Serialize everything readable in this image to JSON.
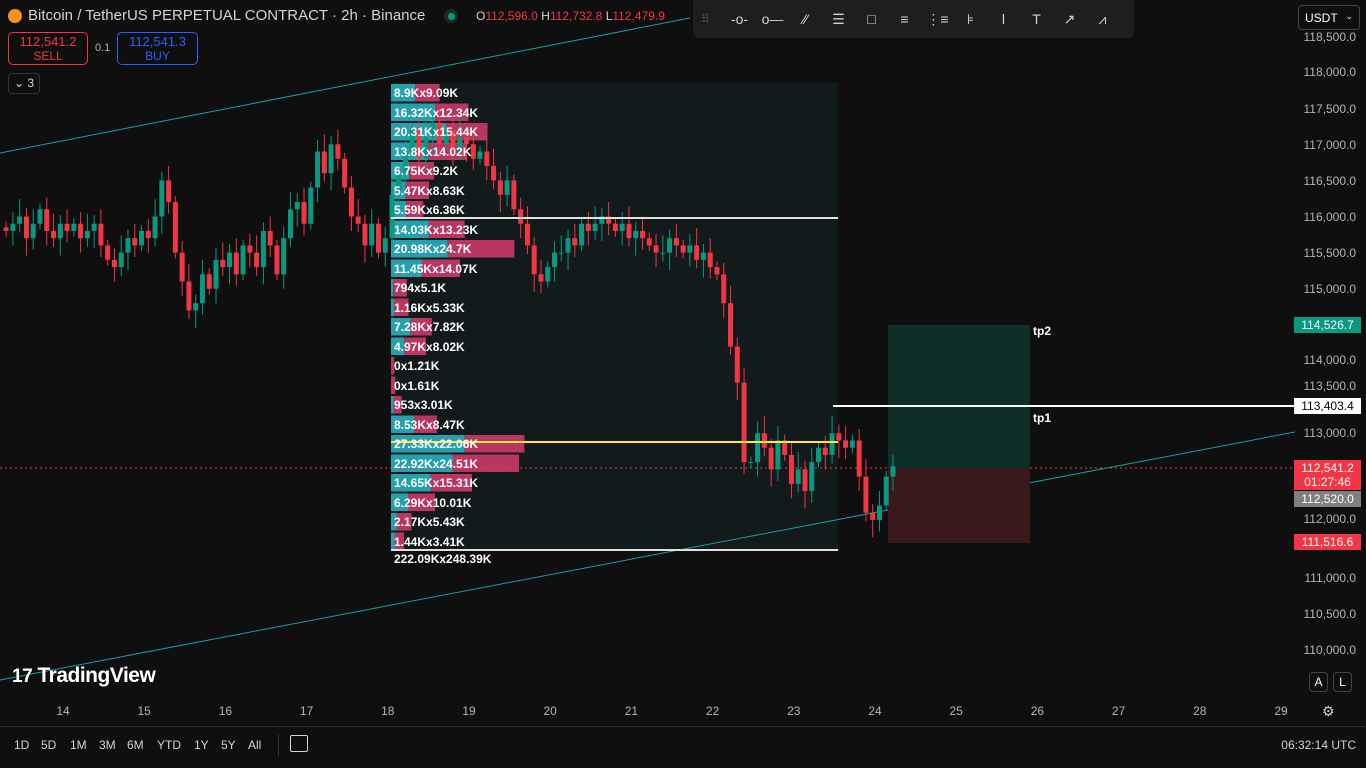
{
  "header": {
    "symbol_title": "Bitcoin / TetherUS PERPETUAL CONTRACT · 2h · Binance",
    "open_label": "O",
    "open": "112,596.0",
    "high_label": "H",
    "high": "112,732.8",
    "low_label": "L",
    "low": "112,479.9"
  },
  "trade": {
    "sell_price": "112,541.2",
    "sell_label": "SELL",
    "quantity": "0.1",
    "buy_price": "112,541.3",
    "buy_label": "BUY"
  },
  "indicators_toggle": {
    "count": "3"
  },
  "toolbar": {
    "tools": [
      "horizontal-ray-icon",
      "horizontal-line-icon",
      "parallel-channel-icon",
      "fib-retracement-icon",
      "rectangle-icon",
      "fib-extension-icon",
      "pitchfork-icon",
      "volume-profile-icon",
      "vertical-line-icon",
      "text-icon",
      "arrow-icon",
      "path-icon"
    ]
  },
  "currency": "USDT",
  "colors": {
    "up": "#089981",
    "down": "#f23645",
    "buy_volume": "#26a0ad",
    "sell_volume": "#b8365f",
    "poc": "#ffeb3b",
    "channel": "#1e9aa6",
    "long_profit": "#0f2e27",
    "long_loss": "#3a181b"
  },
  "price_axis": [
    "118,500.0",
    "118,000.0",
    "117,500.0",
    "117,000.0",
    "116,500.0",
    "116,000.0",
    "115,500.0",
    "115,000.0",
    "114,000.0",
    "113,500.0",
    "113,000.0",
    "112,000.0",
    "111,000.0",
    "110,500.0",
    "110,000.0"
  ],
  "price_tags": {
    "target": "114,526.7",
    "tp1_price": "113,403.4",
    "last_price": "112,541.2",
    "countdown": "01:27:46",
    "crosshair": "112,520.0",
    "stop": "111,516.6"
  },
  "labels": {
    "tp2": "tp2",
    "tp1": "tp1"
  },
  "volume_profile": {
    "rows": [
      {
        "label": "8.9Kx9.09K",
        "buy": 8.9,
        "sell": 9.09
      },
      {
        "label": "16.32Kx12.34K",
        "buy": 16.32,
        "sell": 12.34
      },
      {
        "label": "20.31Kx15.44K",
        "buy": 20.31,
        "sell": 15.44
      },
      {
        "label": "13.8Kx14.02K",
        "buy": 13.8,
        "sell": 14.02
      },
      {
        "label": "6.75Kx9.2K",
        "buy": 6.75,
        "sell": 9.2
      },
      {
        "label": "5.47Kx8.63K",
        "buy": 5.47,
        "sell": 8.63
      },
      {
        "label": "5.59Kx6.36K",
        "buy": 5.59,
        "sell": 6.36
      },
      {
        "label": "14.03Kx13.23K",
        "buy": 14.03,
        "sell": 13.23
      },
      {
        "label": "20.98Kx24.7K",
        "buy": 20.98,
        "sell": 24.7
      },
      {
        "label": "11.45Kx14.07K",
        "buy": 11.45,
        "sell": 14.07
      },
      {
        "label": "794x5.1K",
        "buy": 0.794,
        "sell": 5.1
      },
      {
        "label": "1.16Kx5.33K",
        "buy": 1.16,
        "sell": 5.33
      },
      {
        "label": "7.28Kx7.82K",
        "buy": 7.28,
        "sell": 7.82
      },
      {
        "label": "4.97Kx8.02K",
        "buy": 4.97,
        "sell": 8.02
      },
      {
        "label": "0x1.21K",
        "buy": 0,
        "sell": 1.21
      },
      {
        "label": "0x1.61K",
        "buy": 0,
        "sell": 1.61
      },
      {
        "label": "953x3.01K",
        "buy": 0.953,
        "sell": 3.01
      },
      {
        "label": "8.53Kx8.47K",
        "buy": 8.53,
        "sell": 8.47
      },
      {
        "label": "27.33Kx22.06K",
        "buy": 27.33,
        "sell": 22.06
      },
      {
        "label": "22.92Kx24.51K",
        "buy": 22.92,
        "sell": 24.51
      },
      {
        "label": "14.65Kx15.31K",
        "buy": 14.65,
        "sell": 15.31
      },
      {
        "label": "6.29Kx10.01K",
        "buy": 6.29,
        "sell": 10.01
      },
      {
        "label": "2.17Kx5.43K",
        "buy": 2.17,
        "sell": 5.43
      },
      {
        "label": "1.44Kx3.41K",
        "buy": 1.44,
        "sell": 3.41
      }
    ],
    "total": "222.09Kx248.39K"
  },
  "chart_data": {
    "type": "candlestick",
    "interval": "2h",
    "ylim": [
      109900,
      118700
    ],
    "x_ticks": [
      "14",
      "15",
      "16",
      "17",
      "18",
      "19",
      "20",
      "21",
      "22",
      "23",
      "24",
      "25",
      "26",
      "27",
      "28",
      "29"
    ],
    "closes": [
      115800,
      115900,
      116000,
      115700,
      115900,
      116100,
      115800,
      115700,
      115900,
      115800,
      115900,
      115700,
      115800,
      115900,
      115600,
      115400,
      115300,
      115500,
      115700,
      115600,
      115800,
      115700,
      116000,
      116500,
      116200,
      115500,
      115100,
      114700,
      114800,
      115200,
      115000,
      115400,
      115300,
      115500,
      115200,
      115600,
      115500,
      115300,
      115800,
      115600,
      115200,
      115700,
      116100,
      116200,
      115900,
      116400,
      116900,
      116600,
      117000,
      116800,
      116400,
      116000,
      115900,
      115600,
      115900,
      115500,
      115700,
      116300,
      116600,
      116900,
      117200,
      116800,
      117100,
      117300,
      117000,
      117200,
      116900,
      117100,
      117000,
      116800,
      116900,
      116700,
      116500,
      116300,
      116500,
      116100,
      115900,
      115600,
      115200,
      115100,
      115300,
      115500,
      115500,
      115700,
      115600,
      115900,
      115800,
      115900,
      116000,
      115900,
      115800,
      115900,
      115700,
      115800,
      115700,
      115600,
      115500,
      115500,
      115700,
      115600,
      115500,
      115600,
      115400,
      115500,
      115300,
      115200,
      114800,
      114200,
      113700,
      112600,
      112600,
      113000,
      112800,
      112500,
      112900,
      112700,
      112300,
      112500,
      112200,
      112600,
      112800,
      112700,
      113000,
      112900,
      112800,
      112900,
      112400,
      111900,
      111800,
      112000,
      112400,
      112541
    ]
  },
  "time_axis_settings": "gear-icon",
  "bottom_bar": {
    "ranges": [
      "1D",
      "5D",
      "1M",
      "3M",
      "6M",
      "YTD",
      "1Y",
      "5Y",
      "All"
    ],
    "clock": "06:32:14 UTC"
  },
  "scale_buttons": {
    "auto": "A",
    "log": "L"
  },
  "logo": "TradingView"
}
